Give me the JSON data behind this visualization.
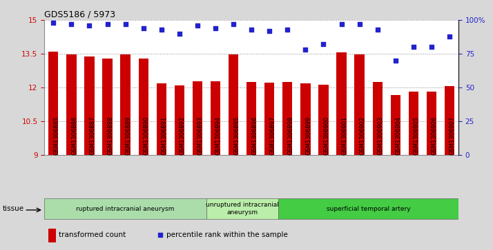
{
  "title": "GDS5186 / 5973",
  "samples": [
    "GSM1306885",
    "GSM1306886",
    "GSM1306887",
    "GSM1306888",
    "GSM1306889",
    "GSM1306890",
    "GSM1306891",
    "GSM1306892",
    "GSM1306893",
    "GSM1306894",
    "GSM1306895",
    "GSM1306896",
    "GSM1306897",
    "GSM1306898",
    "GSM1306899",
    "GSM1306900",
    "GSM1306901",
    "GSM1306902",
    "GSM1306903",
    "GSM1306904",
    "GSM1306905",
    "GSM1306906",
    "GSM1306907"
  ],
  "bar_values": [
    13.58,
    13.47,
    13.37,
    13.28,
    13.47,
    13.3,
    12.17,
    12.1,
    12.28,
    12.28,
    13.47,
    12.25,
    12.22,
    12.25,
    12.17,
    12.13,
    13.55,
    13.47,
    12.25,
    11.67,
    11.82,
    11.82,
    12.05
  ],
  "percentile_values": [
    98,
    97,
    96,
    97,
    97,
    94,
    93,
    90,
    96,
    94,
    97,
    93,
    92,
    93,
    78,
    82,
    97,
    97,
    93,
    70,
    80,
    80,
    88
  ],
  "bar_color": "#cc0000",
  "dot_color": "#2222cc",
  "ylim_left": [
    9,
    15
  ],
  "ylim_right": [
    0,
    100
  ],
  "yticks_left": [
    9,
    10.5,
    12,
    13.5,
    15
  ],
  "yticks_right": [
    0,
    25,
    50,
    75,
    100
  ],
  "ytick_labels_left": [
    "9",
    "10.5",
    "12",
    "13.5",
    "15"
  ],
  "ytick_labels_right": [
    "0",
    "25",
    "50",
    "75",
    "100%"
  ],
  "groups": [
    {
      "label": "ruptured intracranial aneurysm",
      "start": 0,
      "end": 9,
      "color": "#aaddaa"
    },
    {
      "label": "unruptured intracranial\naneurysm",
      "start": 9,
      "end": 13,
      "color": "#bbeeaa"
    },
    {
      "label": "superficial temporal artery",
      "start": 13,
      "end": 23,
      "color": "#44cc44"
    }
  ],
  "group_label": "tissue",
  "legend_bar_label": "transformed count",
  "legend_dot_label": "percentile rank within the sample",
  "bg_color": "#d8d8d8",
  "plot_bg_color": "#ffffff",
  "grid_color": "#888888"
}
